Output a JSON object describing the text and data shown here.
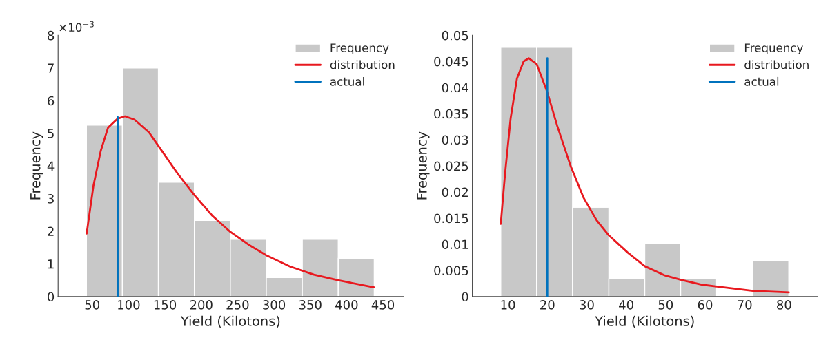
{
  "chart_data": [
    {
      "type": "histogram",
      "xlabel": "Yield (Kilotons)",
      "ylabel": "Frequency",
      "annotations": [
        "×10$^{−3}$"
      ],
      "xlim": [
        3,
        478
      ],
      "xticks": [
        50,
        100,
        150,
        200,
        250,
        300,
        350,
        400,
        450
      ],
      "ylim": [
        0,
        8
      ],
      "yticks": [
        0,
        1,
        2,
        3,
        4,
        5,
        6,
        7,
        8
      ],
      "legend": "top right",
      "grid": false,
      "series": [
        {
          "name": "Frequency",
          "color": "#c8c8c8",
          "bins": [
            42,
            91.5,
            141,
            190.5,
            240,
            289.5,
            339,
            388.5,
            438
          ],
          "values": [
            5.25,
            7,
            3.5,
            2.33,
            1.75,
            0.58,
            1.75,
            1.17
          ]
        },
        {
          "type": "line",
          "name": "distribution",
          "color": "#e8191f",
          "x": [
            42.3,
            51.7,
            61.7,
            71.7,
            85,
            95,
            108,
            128,
            148,
            168,
            190,
            215,
            240,
            265,
            289,
            322,
            355,
            388,
            438
          ],
          "values": [
            1.93,
            3.4,
            4.46,
            5.17,
            5.45,
            5.52,
            5.42,
            5.03,
            4.39,
            3.75,
            3.12,
            2.48,
            1.98,
            1.59,
            1.27,
            0.92,
            0.67,
            0.5,
            0.28
          ]
        },
        {
          "type": "line",
          "name": "actual",
          "color": "#0072bd",
          "x": [
            85,
            85
          ],
          "values": [
            0,
            5.5
          ]
        }
      ]
    },
    {
      "type": "histogram",
      "xlabel": "Yield (Kilotons)",
      "ylabel": "Frequency",
      "xlim": [
        1,
        88.5
      ],
      "xticks": [
        10,
        20,
        30,
        40,
        50,
        60,
        70,
        80
      ],
      "ylim": [
        0,
        0.05
      ],
      "yticks": [
        0,
        0.005,
        0.01,
        0.015,
        0.02,
        0.025,
        0.03,
        0.035,
        0.04,
        0.045,
        0.05
      ],
      "legend": "top right",
      "grid": false,
      "series": [
        {
          "name": "Frequency",
          "color": "#c8c8c8",
          "bins": [
            8.2,
            17.3,
            26.4,
            35.6,
            44.7,
            53.8,
            62.9,
            72.1,
            81.2
          ],
          "values": [
            0.0477,
            0.0477,
            0.017,
            0.0034,
            0.0102,
            0.0034,
            0,
            0.0068
          ]
        },
        {
          "type": "line",
          "name": "distribution",
          "color": "#e8191f",
          "x": [
            8.2,
            9.3,
            10.7,
            12.3,
            14.0,
            15.3,
            17.3,
            20.0,
            22.5,
            25.9,
            29.2,
            32.5,
            35.6,
            40.4,
            44.7,
            49.6,
            53.9,
            58.9,
            63.0,
            72.1,
            81.2
          ],
          "values": [
            0.0139,
            0.0236,
            0.0341,
            0.0417,
            0.045,
            0.0456,
            0.0445,
            0.0391,
            0.0327,
            0.025,
            0.0189,
            0.0146,
            0.0117,
            0.0084,
            0.0058,
            0.0041,
            0.0032,
            0.0023,
            0.0019,
            0.0011,
            0.0008
          ]
        },
        {
          "type": "line",
          "name": "actual",
          "color": "#0072bd",
          "x": [
            20,
            20
          ],
          "values": [
            0,
            0.0456
          ]
        }
      ]
    }
  ]
}
